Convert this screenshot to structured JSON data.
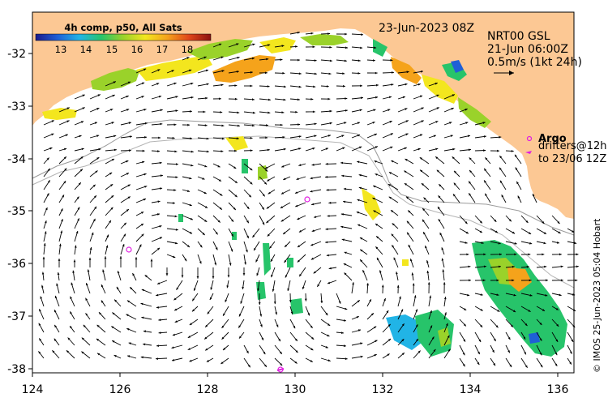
{
  "map": {
    "composite_label": "4h comp, p50, All Sats",
    "colorbar_ticks": [
      "13",
      "14",
      "15",
      "16",
      "17",
      "18"
    ],
    "colorbar_colors": [
      "#1a1a8c",
      "#1f5fd6",
      "#21b4e6",
      "#27c46a",
      "#9ad22a",
      "#f3e61e",
      "#f5a31b",
      "#e0461a",
      "#8b1010"
    ],
    "date_label": "23-Jun-2023 08Z",
    "nrt_label": "NRT00 GSL",
    "nrt_time": "21-Jun 06:00Z",
    "velocity_scale": "0.5m/s (1kt 24h)",
    "argo_label": "Argo",
    "drifters_label": "drifters@12h",
    "drifters_to": "to 23/06 12Z",
    "credit": "© IMOS 25-Jun-2023 05:04 Hobart",
    "x_ticks": [
      "124",
      "126",
      "128",
      "130",
      "132",
      "134",
      "136"
    ],
    "y_ticks": [
      "-32",
      "-33",
      "-34",
      "-35",
      "-36",
      "-37",
      "-38"
    ],
    "land_color": "#fcc894",
    "argo_color": "#e020e0"
  }
}
